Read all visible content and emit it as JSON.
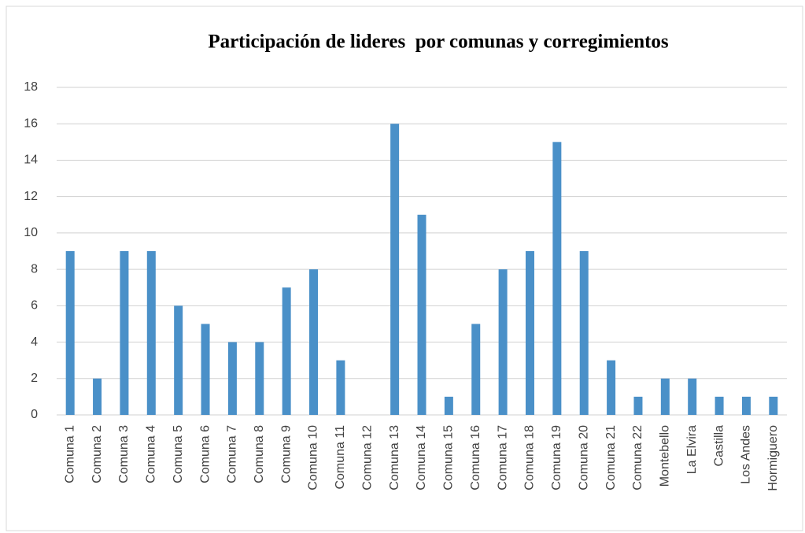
{
  "chart_data": {
    "type": "bar",
    "title": "Participación de lideres  por comunas y corregimientos",
    "categories": [
      "Comuna 1",
      "Comuna 2",
      "Comuna 3",
      "Comuna 4",
      "Comuna 5",
      "Comuna 6",
      "Comuna 7",
      "Comuna 8",
      "Comuna 9",
      "Comuna 10",
      "Comuna 11",
      "Comuna 12",
      "Comuna 13",
      "Comuna 14",
      "Comuna 15",
      "Comuna 16",
      "Comuna 17",
      "Comuna 18",
      "Comuna 19",
      "Comuna 20",
      "Comuna 21",
      "Comuna 22",
      "Montebello",
      "La Elvira",
      "Castilla",
      "Los Andes",
      "Hormiguero"
    ],
    "values": [
      9,
      2,
      9,
      9,
      6,
      5,
      4,
      4,
      7,
      8,
      3,
      0,
      16,
      11,
      1,
      5,
      8,
      9,
      15,
      9,
      3,
      1,
      2,
      2,
      1,
      1,
      1
    ],
    "color": "#4a90c8",
    "ylim": [
      0,
      18
    ],
    "yticks": [
      0,
      2,
      4,
      6,
      8,
      10,
      12,
      14,
      16,
      18
    ],
    "grid": true
  }
}
